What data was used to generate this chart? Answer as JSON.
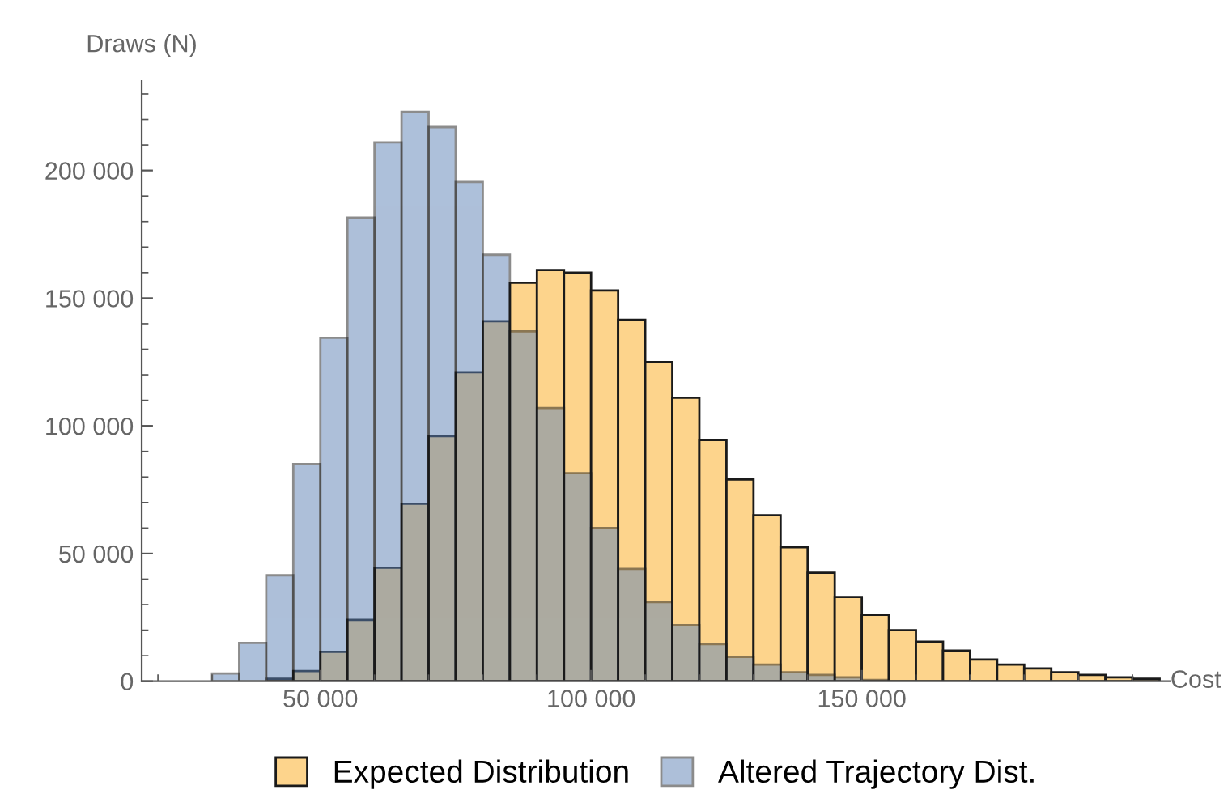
{
  "chart_data": {
    "type": "histogram",
    "xlabel": "Cost",
    "ylabel": "Draws (N)",
    "bins": [
      30000,
      35000,
      40000,
      45000,
      50000,
      55000,
      60000,
      65000,
      70000,
      75000,
      80000,
      85000,
      90000,
      95000,
      100000,
      105000,
      110000,
      115000,
      120000,
      125000,
      130000,
      135000,
      140000,
      145000,
      150000,
      155000,
      160000,
      165000,
      170000,
      175000,
      180000,
      185000,
      190000,
      195000,
      200000,
      205000
    ],
    "series": [
      {
        "name": "Expected Distribution",
        "color": "#fdd48c",
        "values": [
          null,
          null,
          1000,
          4000,
          11500,
          24000,
          44500,
          69500,
          96000,
          121000,
          141000,
          156000,
          161000,
          160000,
          153000,
          141500,
          125000,
          111000,
          94500,
          79000,
          65000,
          52500,
          42500,
          33000,
          26000,
          20000,
          15500,
          12000,
          8500,
          6500,
          5000,
          3500,
          2500,
          1500,
          1000
        ]
      },
      {
        "name": "Altered Trajectory Dist.",
        "color": "#aec0da",
        "values": [
          3000,
          15000,
          41500,
          85000,
          134500,
          181500,
          211000,
          223000,
          217000,
          195500,
          167000,
          137000,
          107000,
          81500,
          60000,
          44000,
          31000,
          22000,
          14500,
          9500,
          6500,
          3500,
          2500,
          1500,
          500,
          null,
          null,
          null,
          null,
          null,
          null,
          null,
          null,
          null,
          null
        ]
      }
    ],
    "xlim": [
      17000,
      207000
    ],
    "ylim": [
      0,
      235000
    ],
    "xticks": [
      {
        "value": 50000,
        "label": "50 000"
      },
      {
        "value": 100000,
        "label": "100 000"
      },
      {
        "value": 150000,
        "label": "150 000"
      }
    ],
    "yticks": [
      0,
      {
        "value": 50000,
        "label": "50 000"
      },
      {
        "value": 100000,
        "label": "100 000"
      },
      {
        "value": 150000,
        "label": "150 000"
      },
      {
        "value": 200000,
        "label": "200 000"
      }
    ],
    "grid": false,
    "legend": "bottom"
  }
}
